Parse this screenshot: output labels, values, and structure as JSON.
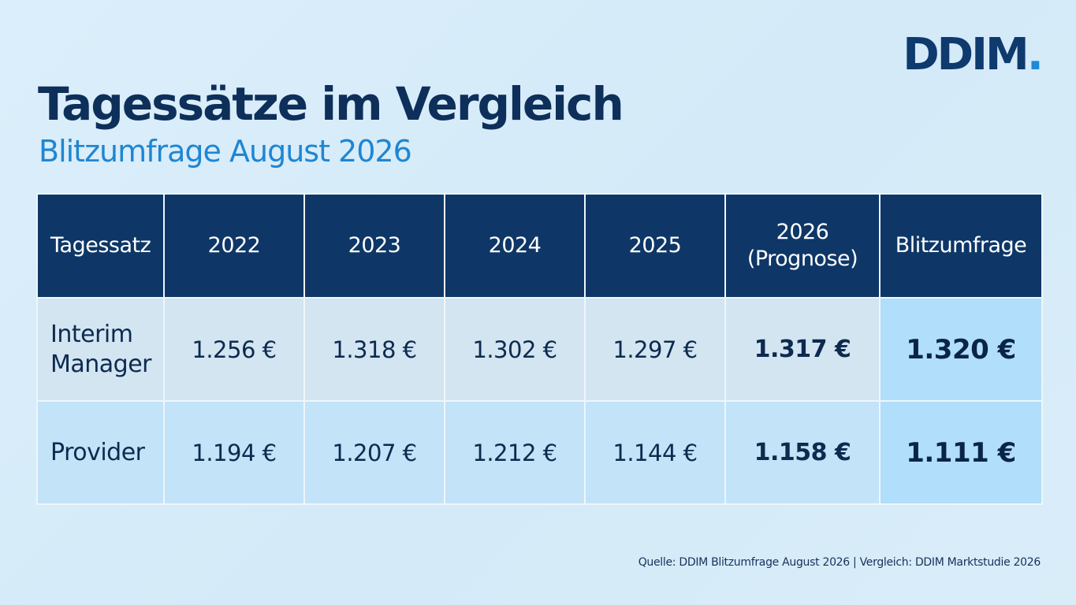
{
  "logo": {
    "main": "DDIM",
    "dot": "."
  },
  "title": "Tagessätze im Vergleich",
  "subtitle": "Blitzumfrage August 2026",
  "table": {
    "headers": [
      "Tagessatz",
      "2022",
      "2023",
      "2024",
      "2025",
      "2026",
      "(Prognose)",
      "Blitzumfrage"
    ],
    "rows": [
      {
        "label_line1": "Interim",
        "label_line2": "Manager",
        "values": [
          "1.256 €",
          "1.318 €",
          "1.302 €",
          "1.297 €",
          "1.317 €",
          "1.320 €"
        ]
      },
      {
        "label": "Provider",
        "values": [
          "1.194 €",
          "1.207 €",
          "1.212 €",
          "1.144 €",
          "1.158 €",
          "1.111 €"
        ]
      }
    ]
  },
  "footnote": "Quelle: DDIM Blitzumfrage August 2026 | Vergleich: DDIM Marktstudie 2026",
  "colors": {
    "header_bg": "#0e3767",
    "accent_blue": "#1f86d2",
    "row_interim_bg": "#d2e5f1",
    "row_provider_bg": "#c2e3f8",
    "highlight_bg": "#b1defa"
  }
}
